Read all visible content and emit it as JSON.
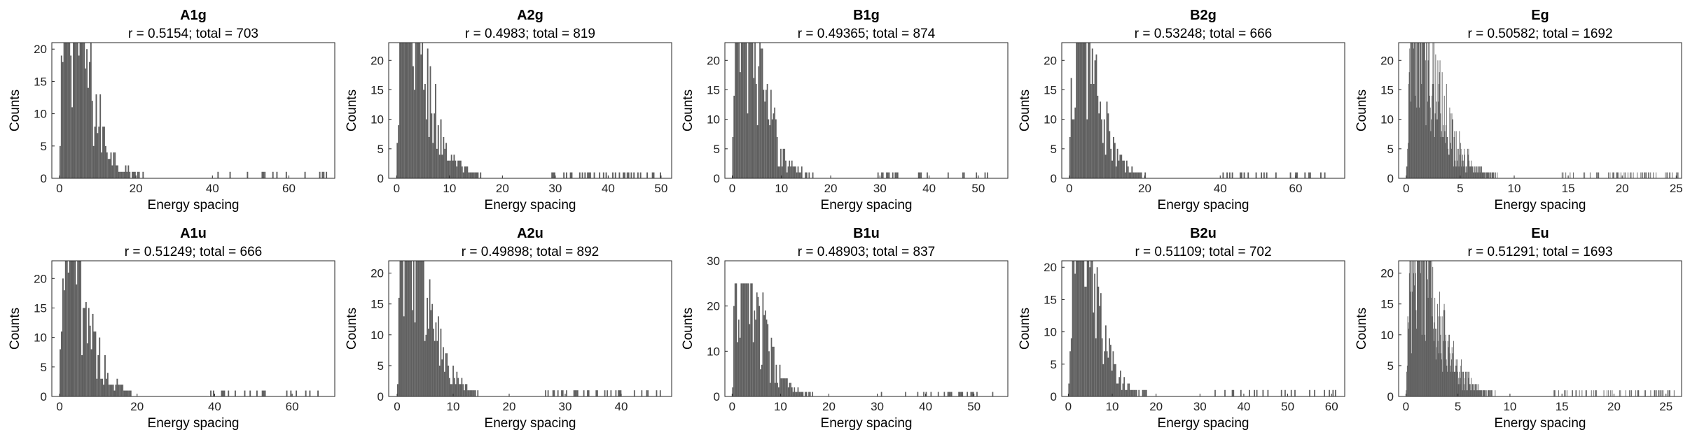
{
  "chart_data": [
    {
      "type": "bar",
      "title": "A1g",
      "subtitle": "r = 0.5154; total = 703",
      "xlabel": "Energy spacing",
      "ylabel": "Counts",
      "xlim": [
        -2,
        72
      ],
      "ylim": [
        0,
        21
      ],
      "xticks": [
        0,
        20,
        40,
        60
      ],
      "yticks": [
        0,
        5,
        10,
        15,
        20
      ],
      "xmax_data": 70,
      "total": 703,
      "peak": 21,
      "shape": 3.0,
      "width": 0.35,
      "grid": false,
      "legend": false
    },
    {
      "type": "bar",
      "title": "A2g",
      "subtitle": "r = 0.4983; total = 819",
      "xlabel": "Energy spacing",
      "ylabel": "Counts",
      "xlim": [
        -1.5,
        52
      ],
      "ylim": [
        0,
        23
      ],
      "xticks": [
        0,
        10,
        20,
        30,
        40,
        50
      ],
      "yticks": [
        0,
        5,
        10,
        15,
        20
      ],
      "xmax_data": 50,
      "total": 819,
      "peak": 23,
      "shape": 2.2,
      "width": 0.25,
      "grid": false,
      "legend": false
    },
    {
      "type": "bar",
      "title": "B1g",
      "subtitle": "r = 0.49365; total = 874",
      "xlabel": "Energy spacing",
      "ylabel": "Counts",
      "xlim": [
        -1.5,
        56
      ],
      "ylim": [
        0,
        23
      ],
      "xticks": [
        0,
        10,
        20,
        30,
        40,
        50
      ],
      "yticks": [
        0,
        5,
        10,
        15,
        20
      ],
      "xmax_data": 52,
      "total": 874,
      "peak": 23,
      "shape": 2.2,
      "width": 0.25,
      "grid": false,
      "legend": false
    },
    {
      "type": "bar",
      "title": "B2g",
      "subtitle": "r = 0.53248; total = 666",
      "xlabel": "Energy spacing",
      "ylabel": "Counts",
      "xlim": [
        -2,
        73
      ],
      "ylim": [
        0,
        23
      ],
      "xticks": [
        0,
        20,
        40,
        60
      ],
      "yticks": [
        0,
        5,
        10,
        15,
        20
      ],
      "xmax_data": 68,
      "total": 666,
      "peak": 23,
      "shape": 2.8,
      "width": 0.35,
      "grid": false,
      "legend": false
    },
    {
      "type": "bar",
      "title": "Eg",
      "subtitle": "r = 0.50582; total = 1692",
      "xlabel": "Energy spacing",
      "ylabel": "Counts",
      "xlim": [
        -0.7,
        25.5
      ],
      "ylim": [
        0,
        23
      ],
      "xticks": [
        0,
        5,
        10,
        15,
        20,
        25
      ],
      "yticks": [
        0,
        5,
        10,
        15,
        20
      ],
      "xmax_data": 25.2,
      "total": 1692,
      "peak": 23,
      "shape": 1.2,
      "width": 0.05,
      "grid": false,
      "legend": false
    },
    {
      "type": "bar",
      "title": "A1u",
      "subtitle": "r = 0.51249; total = 666",
      "xlabel": "Energy spacing",
      "ylabel": "Counts",
      "xlim": [
        -2,
        71
      ],
      "ylim": [
        0,
        23
      ],
      "xticks": [
        0,
        20,
        40,
        60
      ],
      "yticks": [
        0,
        5,
        10,
        15,
        20
      ],
      "xmax_data": 67,
      "total": 666,
      "peak": 23,
      "shape": 2.7,
      "width": 0.35,
      "grid": false,
      "legend": false
    },
    {
      "type": "bar",
      "title": "A2u",
      "subtitle": "r = 0.49898; total = 892",
      "xlabel": "Energy spacing",
      "ylabel": "Counts",
      "xlim": [
        -1.5,
        49
      ],
      "ylim": [
        0,
        22
      ],
      "xticks": [
        0,
        10,
        20,
        30,
        40
      ],
      "yticks": [
        0,
        5,
        10,
        15,
        20
      ],
      "xmax_data": 47,
      "total": 892,
      "peak": 22,
      "shape": 2.0,
      "width": 0.22,
      "grid": false,
      "legend": false
    },
    {
      "type": "bar",
      "title": "B1u",
      "subtitle": "r = 0.48903; total = 837",
      "xlabel": "Energy spacing",
      "ylabel": "Counts",
      "xlim": [
        -1.5,
        57
      ],
      "ylim": [
        0,
        30
      ],
      "xticks": [
        0,
        10,
        20,
        30,
        40,
        50
      ],
      "yticks": [
        0,
        10,
        20,
        30
      ],
      "xmax_data": 54,
      "total": 837,
      "peak": 25,
      "shape": 2.2,
      "width": 0.25,
      "grid": false,
      "legend": false
    },
    {
      "type": "bar",
      "title": "B2u",
      "subtitle": "r = 0.51109; total = 702",
      "xlabel": "Energy spacing",
      "ylabel": "Counts",
      "xlim": [
        -1.5,
        63
      ],
      "ylim": [
        0,
        21
      ],
      "xticks": [
        0,
        10,
        20,
        30,
        40,
        50,
        60
      ],
      "yticks": [
        0,
        5,
        10,
        15,
        20
      ],
      "xmax_data": 61,
      "total": 702,
      "peak": 21,
      "shape": 2.4,
      "width": 0.28,
      "grid": false,
      "legend": false
    },
    {
      "type": "bar",
      "title": "Eu",
      "subtitle": "r = 0.51291; total = 1693",
      "xlabel": "Energy spacing",
      "ylabel": "Counts",
      "xlim": [
        -0.7,
        26.5
      ],
      "ylim": [
        0,
        22
      ],
      "xticks": [
        0,
        5,
        10,
        15,
        20,
        25
      ],
      "yticks": [
        0,
        5,
        10,
        15,
        20
      ],
      "xmax_data": 25.8,
      "total": 1693,
      "peak": 22,
      "shape": 1.2,
      "width": 0.05,
      "grid": false,
      "legend": false
    }
  ]
}
